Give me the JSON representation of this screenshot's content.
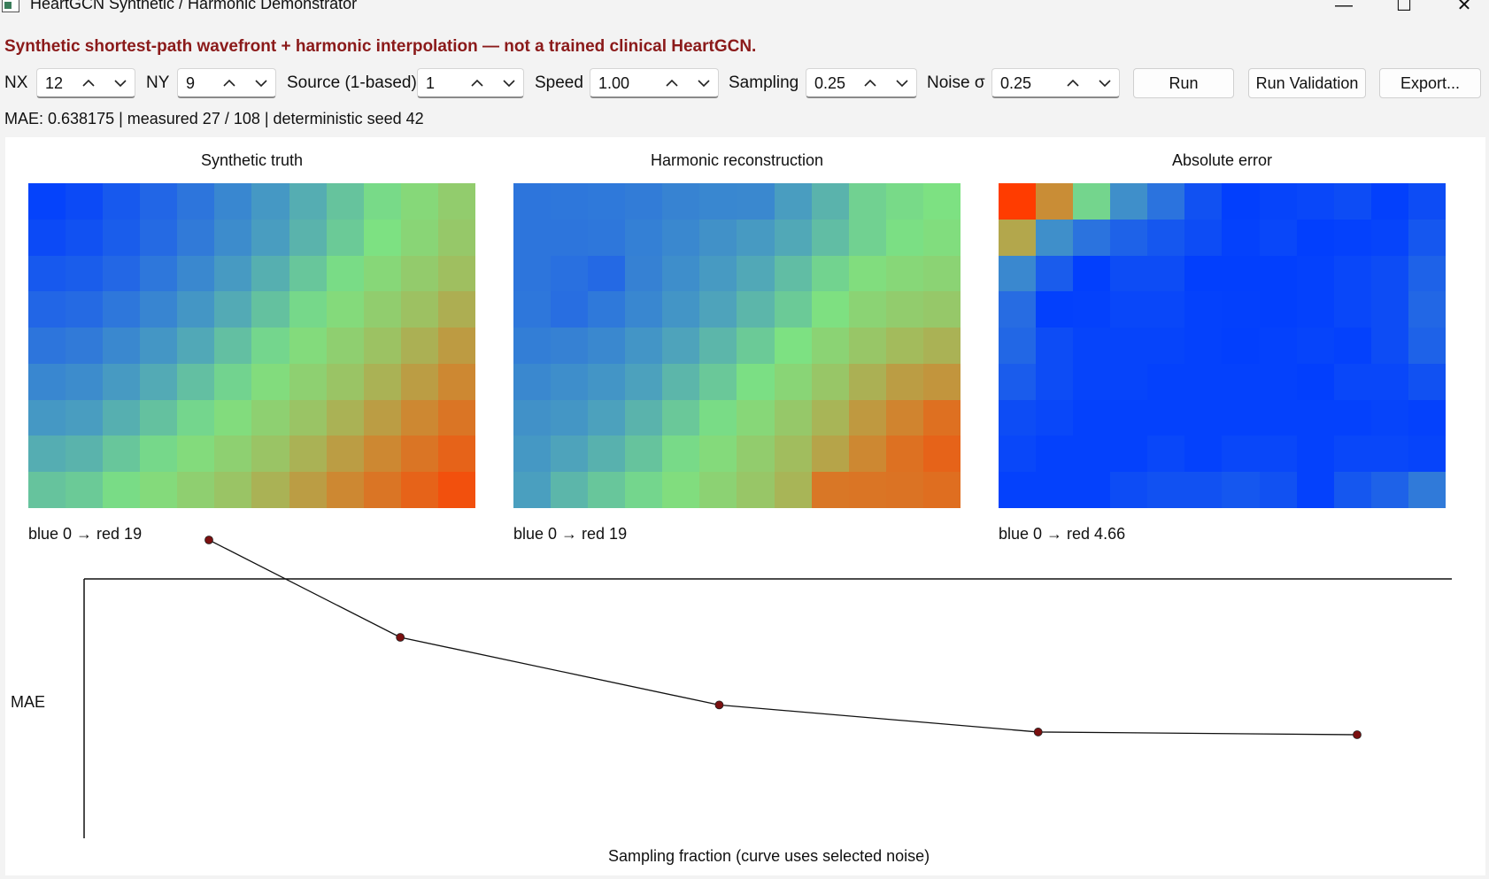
{
  "window": {
    "title": "HeartGCN Synthetic / Harmonic Demonstrator",
    "minimize_glyph": "—",
    "maximize_glyph": "☐",
    "close_glyph": "✕"
  },
  "banner": "Synthetic shortest-path wavefront + harmonic interpolation — not a trained clinical HeartGCN.",
  "toolbar": {
    "nx_label": "NX",
    "nx_value": "12",
    "ny_label": "NY",
    "ny_value": "9",
    "source_label": "Source (1-based)",
    "source_value": "1",
    "speed_label": "Speed",
    "speed_value": "1.00",
    "sampling_label": "Sampling",
    "sampling_value": "0.25",
    "noise_label": "Noise σ",
    "noise_value": "0.25",
    "run_label": "Run",
    "validation_label": "Run Validation",
    "export_label": "Export..."
  },
  "status": "MAE: 0.638175 | measured 27 / 108 | deterministic seed 42",
  "heatmaps": [
    {
      "title": "Synthetic truth",
      "legend": "blue 0  →  red 19",
      "max": 19,
      "grid": [
        [
          0.5,
          1.1,
          2.2,
          3.2,
          4.2,
          5.2,
          6.2,
          7.2,
          8.2,
          9.2,
          10.2,
          11.2
        ],
        [
          1.1,
          1.6,
          2.5,
          3.5,
          4.5,
          5.5,
          6.5,
          7.5,
          8.5,
          9.5,
          10.5,
          11.5
        ],
        [
          2.2,
          2.5,
          3.3,
          4.3,
          5.3,
          6.3,
          7.3,
          8.3,
          9.3,
          10.3,
          11.3,
          12.3
        ],
        [
          3.2,
          3.5,
          4.3,
          5.1,
          6.1,
          7.1,
          8.1,
          9.1,
          10.1,
          11.1,
          12.1,
          13.1
        ],
        [
          4.2,
          4.5,
          5.3,
          6.1,
          7.0,
          8.0,
          9.0,
          10.0,
          11.0,
          12.0,
          13.0,
          14.0
        ],
        [
          5.2,
          5.5,
          6.3,
          7.1,
          8.0,
          8.9,
          9.9,
          10.9,
          11.9,
          12.9,
          13.9,
          14.9
        ],
        [
          6.2,
          6.5,
          7.3,
          8.1,
          9.0,
          9.9,
          10.9,
          11.9,
          12.9,
          13.9,
          14.9,
          15.9
        ],
        [
          7.2,
          7.5,
          8.3,
          9.1,
          10.0,
          10.9,
          11.9,
          12.9,
          13.9,
          14.9,
          15.9,
          16.9
        ],
        [
          8.2,
          8.5,
          9.3,
          10.1,
          11.0,
          11.9,
          12.9,
          13.9,
          14.9,
          15.9,
          16.9,
          17.9
        ]
      ]
    },
    {
      "title": "Harmonic reconstruction",
      "legend": "blue 0  →  red 19",
      "max": 19,
      "grid": [
        [
          4.2,
          4.3,
          4.4,
          4.6,
          5.0,
          5.2,
          5.3,
          6.5,
          7.5,
          8.8,
          9.2,
          9.5
        ],
        [
          4.2,
          4.2,
          4.3,
          4.8,
          5.3,
          5.8,
          6.3,
          7.0,
          7.9,
          8.8,
          9.4,
          9.8
        ],
        [
          4.2,
          3.9,
          3.4,
          4.9,
          5.6,
          6.3,
          7.0,
          7.9,
          8.9,
          9.8,
          10.3,
          10.6
        ],
        [
          4.3,
          3.8,
          4.4,
          5.2,
          6.0,
          6.8,
          7.6,
          8.5,
          9.6,
          10.6,
          11.2,
          11.5
        ],
        [
          4.7,
          4.9,
          5.3,
          6.0,
          6.8,
          7.6,
          8.5,
          9.5,
          10.6,
          11.7,
          12.5,
          12.9
        ],
        [
          5.3,
          5.6,
          6.0,
          6.7,
          7.6,
          8.4,
          9.4,
          10.5,
          11.7,
          13.0,
          13.9,
          14.3
        ],
        [
          5.8,
          6.1,
          6.7,
          7.5,
          8.4,
          9.3,
          10.3,
          11.5,
          12.8,
          14.1,
          15.1,
          16.2
        ],
        [
          6.2,
          6.8,
          7.4,
          8.2,
          9.2,
          10.1,
          11.2,
          12.4,
          13.6,
          14.9,
          16.1,
          16.9
        ],
        [
          6.6,
          7.6,
          8.3,
          9.0,
          9.8,
          10.7,
          11.7,
          12.8,
          15.8,
          15.9,
          16.0,
          16.3
        ]
      ]
    },
    {
      "title": "Absolute error",
      "legend": "blue 0  →  red 4.66",
      "max": 4.66,
      "grid": [
        [
          4.66,
          3.6,
          2.2,
          1.4,
          1.0,
          0.4,
          0.05,
          0.15,
          0.2,
          0.3,
          0.08,
          0.3
        ],
        [
          3.3,
          1.4,
          1.0,
          0.7,
          0.5,
          0.3,
          0.1,
          0.2,
          0.05,
          0.1,
          0.15,
          0.5
        ],
        [
          1.3,
          0.6,
          0.05,
          0.3,
          0.3,
          0.05,
          0.05,
          0.05,
          0.1,
          0.2,
          0.3,
          0.7
        ],
        [
          0.9,
          0.08,
          0.1,
          0.2,
          0.2,
          0.1,
          0.08,
          0.05,
          0.1,
          0.2,
          0.3,
          0.8
        ],
        [
          0.8,
          0.3,
          0.15,
          0.15,
          0.15,
          0.1,
          0.05,
          0.1,
          0.15,
          0.1,
          0.3,
          0.7
        ],
        [
          0.6,
          0.3,
          0.15,
          0.15,
          0.1,
          0.1,
          0.1,
          0.1,
          0.05,
          0.2,
          0.2,
          0.4
        ],
        [
          0.3,
          0.2,
          0.1,
          0.1,
          0.1,
          0.1,
          0.1,
          0.1,
          0.1,
          0.1,
          0.15,
          0.1
        ],
        [
          0.2,
          0.1,
          0.1,
          0.1,
          0.2,
          0.1,
          0.2,
          0.2,
          0.1,
          0.2,
          0.2,
          0.15
        ],
        [
          0.1,
          0.1,
          0.1,
          0.3,
          0.4,
          0.4,
          0.5,
          0.4,
          0.1,
          0.5,
          0.7,
          1.1
        ]
      ]
    }
  ],
  "chart_data": {
    "type": "line",
    "xlabel": "Sampling fraction  (curve uses selected noise)",
    "ylabel": "MAE",
    "x": [
      0.1,
      0.25,
      0.5,
      0.75,
      1.0
    ],
    "series": [
      {
        "values": [
          1.0,
          0.64,
          0.39,
          0.29,
          0.28
        ]
      }
    ],
    "xlim": [
      0.0,
      1.0
    ],
    "ylim": [
      0.12,
      1.0
    ],
    "grid": false,
    "marker_color": "#7a1010",
    "line_color": "#111111"
  }
}
